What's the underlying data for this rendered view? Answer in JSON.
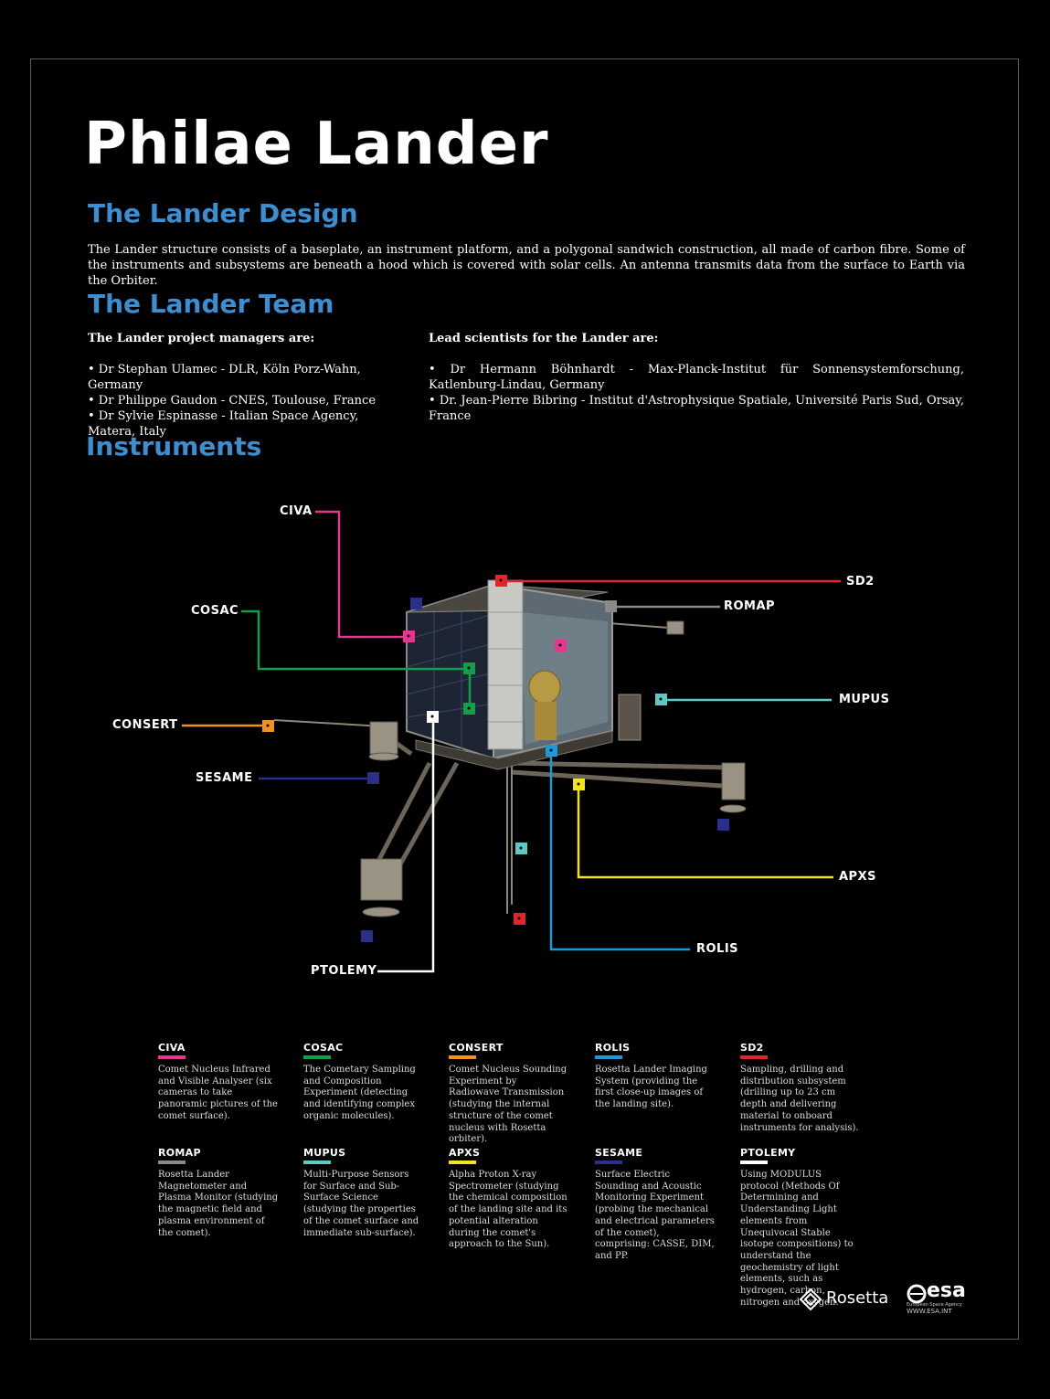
{
  "title": "Philae Lander",
  "design": {
    "heading": "The Lander Design",
    "text": "The Lander structure consists of a baseplate, an instrument platform, and a polygonal sandwich construction, all made of carbon fibre. Some of the instruments and subsystems are beneath a hood which is covered with solar cells. An antenna transmits data from the surface to Earth via the Orbiter."
  },
  "team": {
    "heading": "The Lander  Team",
    "managers_heading": "The Lander project managers are:",
    "managers": [
      "• Dr Stephan Ulamec - DLR, Köln Porz-Wahn, Germany",
      "• Dr Philippe Gaudon - CNES, Toulouse, France",
      "• Dr Sylvie Espinasse - Italian Space Agency, Matera, Italy"
    ],
    "scientists_heading": "Lead scientists for the Lander are:",
    "scientists": [
      "• Dr Hermann Böhnhardt - Max-Planck-Institut für Sonnensystemforschung, Katlenburg-Lindau, Germany",
      "• Dr. Jean-Pierre Bibring - Institut d'Astrophysique Spatiale, Université Paris Sud, Orsay, France"
    ]
  },
  "instruments_heading": "Instruments",
  "callouts": {
    "civa": "CIVA",
    "cosac": "COSAC",
    "consert": "CONSERT",
    "sesame": "SESAME",
    "ptolemy": "PTOLEMY",
    "sd2": "SD2",
    "romap": "ROMAP",
    "mupus": "MUPUS",
    "apxs": "APXS",
    "rolis": "ROLIS"
  },
  "colors": {
    "civa": "#e8358f",
    "cosac": "#0fa04a",
    "consert": "#f0921c",
    "sesame": "#2a2f8c",
    "ptolemy": "#ffffff",
    "sd2": "#e3242b",
    "romap": "#8a8a8a",
    "mupus": "#5fc7c4",
    "apxs": "#f2e51a",
    "rolis": "#1a9ad9",
    "heading": "#3a8fd3"
  },
  "legend": [
    {
      "name": "CIVA",
      "color": "#e8358f",
      "desc": "Comet Nucleus Infrared and Visible Analyser (six cameras to take panoramic pictures of the comet surface)."
    },
    {
      "name": "COSAC",
      "color": "#0fa04a",
      "desc": "The Cometary Sampling and Composition Experiment (detecting and identifying complex organic molecules)."
    },
    {
      "name": "CONSERT",
      "color": "#f0921c",
      "desc": "Comet Nucleus Sounding Experiment by Radiowave Transmission (studying the internal structure of the comet nucleus with Rosetta orbiter)."
    },
    {
      "name": "ROLIS",
      "color": "#1a9ad9",
      "desc": "Rosetta Lander Imaging System (providing the first close-up images of the landing site)."
    },
    {
      "name": "SD2",
      "color": "#e3242b",
      "desc": "Sampling, drilling and distribution subsystem (drilling up to 23 cm depth and delivering material to onboard instruments for analysis)."
    },
    {
      "name": "ROMAP",
      "color": "#8a8a8a",
      "desc": "Rosetta Lander Magnetometer and Plasma Monitor (studying the magnetic field and plasma environment of the comet)."
    },
    {
      "name": "MUPUS",
      "color": "#5fc7c4",
      "desc": "Multi-Purpose Sensors for Surface and Sub-Surface Science (studying the properties of the comet surface and immediate sub-surface)."
    },
    {
      "name": "APXS",
      "color": "#f2e51a",
      "desc": "Alpha Proton X-ray Spectrometer (studying the chemical composition of the landing site and its potential alteration during the comet's approach to the Sun)."
    },
    {
      "name": "SESAME",
      "color": "#2a2f8c",
      "desc": "Surface Electric Sounding and Acoustic Monitoring Experiment (probing the mechanical and electrical parameters of the comet), comprising: CASSE, DIM, and PP."
    },
    {
      "name": "PTOLEMY",
      "color": "#ffffff",
      "desc": "Using MODULUS protocol (Methods Of Determining and Understanding Light elements from Unequivocal Stable isotope compositions) to understand the geochemistry of light elements, such as hydrogen, carbon, nitrogen and oxygen."
    }
  ],
  "logos": {
    "rosetta": "Rosetta",
    "esa": "esa",
    "esa_sub": "European Space Agency",
    "esa_url": "WWW.ESA.INT"
  }
}
